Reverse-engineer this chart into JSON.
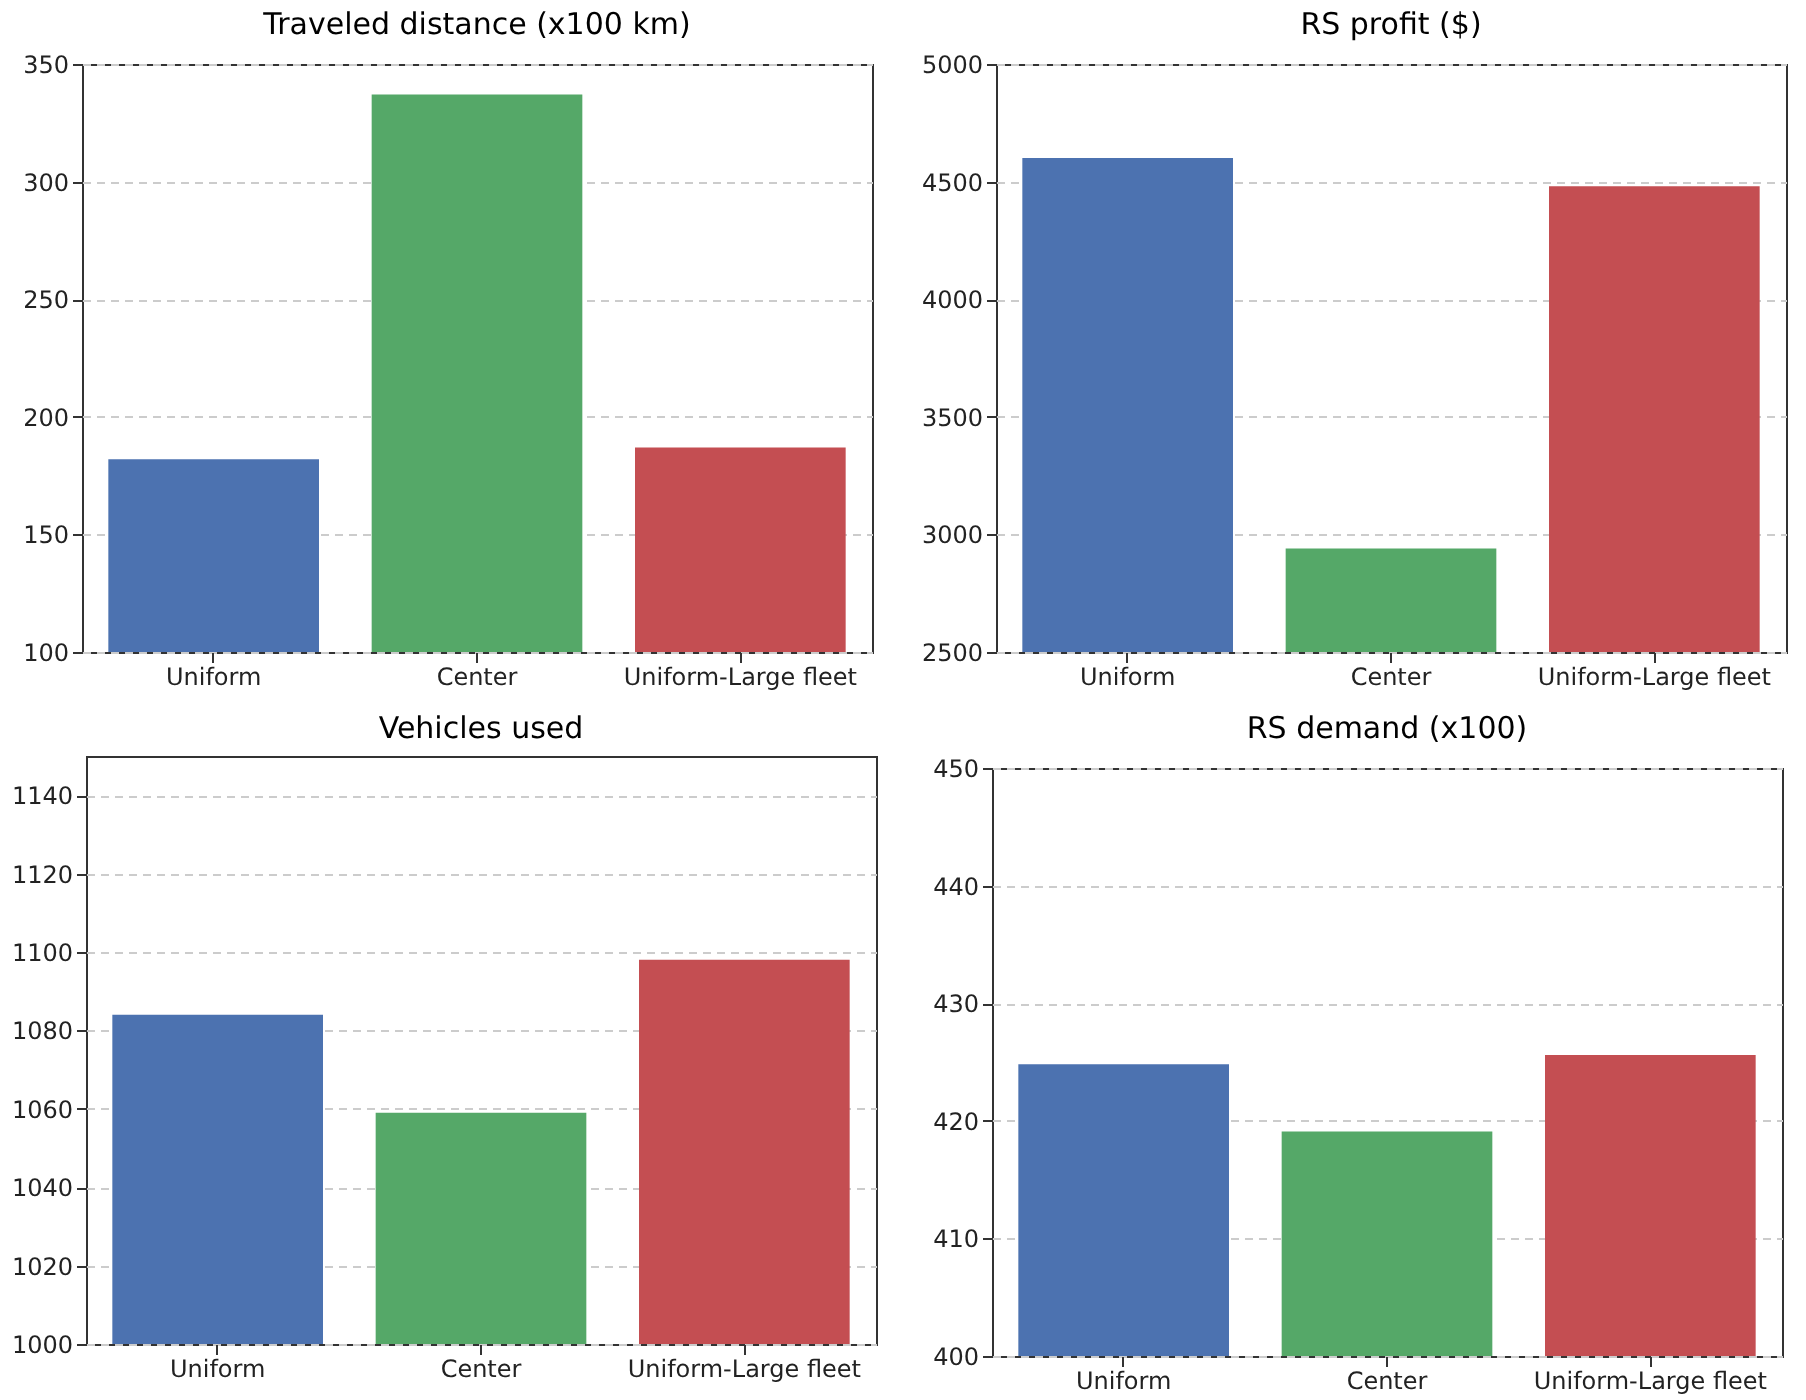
{
  "chart_data": [
    {
      "type": "bar",
      "title": "Traveled distance (x100 km)",
      "categories": [
        "Uniform",
        "Center",
        "Uniform-Large fleet"
      ],
      "values": [
        182,
        337,
        187
      ],
      "colors": [
        "#4c72b0",
        "#55a868",
        "#c44e52"
      ],
      "ylim": [
        100,
        350
      ],
      "yticks": [
        100,
        150,
        200,
        250,
        300,
        350
      ],
      "grid": "y"
    },
    {
      "type": "bar",
      "title": "RS profit ($)",
      "categories": [
        "Uniform",
        "Center",
        "Uniform-Large fleet"
      ],
      "values": [
        4600,
        2940,
        4480
      ],
      "colors": [
        "#4c72b0",
        "#55a868",
        "#c44e52"
      ],
      "ylim": [
        2500,
        5000
      ],
      "yticks": [
        2500,
        3000,
        3500,
        4000,
        4500,
        5000
      ],
      "grid": "y"
    },
    {
      "type": "bar",
      "title": "Vehicles used",
      "categories": [
        "Uniform",
        "Center",
        "Uniform-Large fleet"
      ],
      "values": [
        1084,
        1059,
        1098
      ],
      "colors": [
        "#4c72b0",
        "#55a868",
        "#c44e52"
      ],
      "ylim": [
        1000,
        1150
      ],
      "yticks": [
        1000,
        1020,
        1040,
        1060,
        1080,
        1100,
        1120,
        1140
      ],
      "grid": "y"
    },
    {
      "type": "bar",
      "title": "RS demand (x100)",
      "categories": [
        "Uniform",
        "Center",
        "Uniform-Large fleet"
      ],
      "values": [
        424.8,
        419.1,
        425.6
      ],
      "colors": [
        "#4c72b0",
        "#55a868",
        "#c44e52"
      ],
      "ylim": [
        400,
        450
      ],
      "yticks": [
        400,
        410,
        420,
        430,
        440,
        450
      ],
      "grid": "y"
    }
  ]
}
